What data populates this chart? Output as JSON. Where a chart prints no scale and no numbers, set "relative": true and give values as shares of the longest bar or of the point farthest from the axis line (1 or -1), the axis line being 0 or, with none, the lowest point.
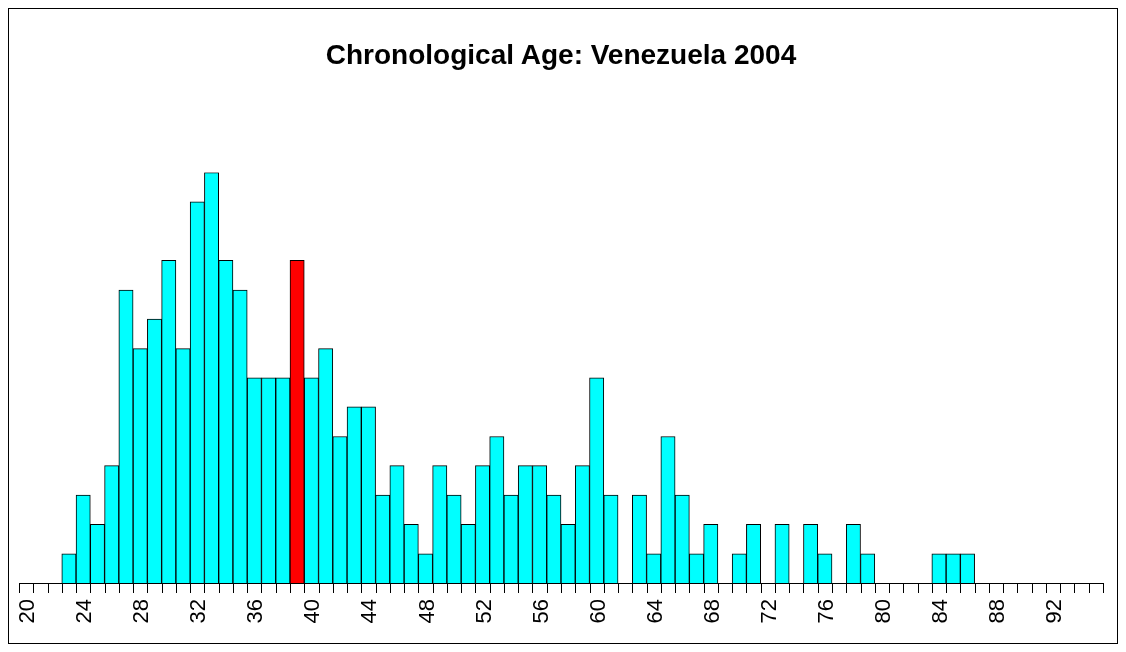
{
  "chart_data": {
    "type": "bar",
    "title": "Chronological Age: Venezuela 2004",
    "relative": true,
    "categories": [
      "20",
      null,
      null,
      null,
      "24",
      null,
      null,
      null,
      "28",
      null,
      null,
      null,
      "32",
      null,
      null,
      null,
      "36",
      null,
      null,
      null,
      "40",
      null,
      null,
      null,
      "44",
      null,
      null,
      null,
      "48",
      null,
      null,
      null,
      "52",
      null,
      null,
      null,
      "56",
      null,
      null,
      null,
      "60",
      null,
      null,
      null,
      "64",
      null,
      null,
      null,
      "68",
      null,
      null,
      null,
      "72",
      null,
      null,
      null,
      "76",
      null,
      null,
      null,
      "80",
      null,
      null,
      null,
      "84",
      null,
      null,
      null,
      "88",
      null,
      null,
      null,
      "92",
      null,
      null,
      null
    ],
    "values": [
      0,
      0,
      0,
      0.071,
      0.214,
      0.143,
      0.286,
      0.714,
      0.571,
      0.643,
      0.786,
      0.571,
      0.929,
      1,
      0.786,
      0.714,
      0.5,
      0.5,
      0.5,
      0.786,
      0.5,
      0.571,
      0.357,
      0.429,
      0.429,
      0.214,
      0.286,
      0.143,
      0.071,
      0.286,
      0.214,
      0.143,
      0.286,
      0.357,
      0.214,
      0.286,
      0.286,
      0.214,
      0.143,
      0.286,
      0.5,
      0.214,
      0,
      0.214,
      0.071,
      0.357,
      0.214,
      0.071,
      0.143,
      0,
      0.071,
      0.143,
      0,
      0.143,
      0,
      0.143,
      0.071,
      0,
      0.143,
      0.071,
      0,
      0,
      0,
      0,
      0.071,
      0.071,
      0.071,
      0,
      0,
      0,
      0,
      0,
      0,
      0,
      0,
      0
    ],
    "colors": [
      "#00ffff",
      "#00ffff",
      "#00ffff",
      "#00ffff",
      "#00ffff",
      "#00ffff",
      "#00ffff",
      "#00ffff",
      "#00ffff",
      "#00ffff",
      "#00ffff",
      "#00ffff",
      "#00ffff",
      "#00ffff",
      "#00ffff",
      "#00ffff",
      "#00ffff",
      "#00ffff",
      "#00ffff",
      "#ff0000",
      "#00ffff",
      "#00ffff",
      "#00ffff",
      "#00ffff",
      "#00ffff",
      "#00ffff",
      "#00ffff",
      "#00ffff",
      "#00ffff",
      "#00ffff",
      "#00ffff",
      "#00ffff",
      "#00ffff",
      "#00ffff",
      "#00ffff",
      "#00ffff",
      "#00ffff",
      "#00ffff",
      "#00ffff",
      "#00ffff",
      "#00ffff",
      "#00ffff",
      "#00ffff",
      "#00ffff",
      "#00ffff",
      "#00ffff",
      "#00ffff",
      "#00ffff",
      "#00ffff",
      "#00ffff",
      "#00ffff",
      "#00ffff",
      "#00ffff",
      "#00ffff",
      "#00ffff",
      "#00ffff",
      "#00ffff",
      "#00ffff",
      "#00ffff",
      "#00ffff",
      "#00ffff",
      "#00ffff",
      "#00ffff",
      "#00ffff",
      "#00ffff",
      "#00ffff",
      "#00ffff",
      "#00ffff",
      "#00ffff",
      "#00ffff",
      "#00ffff",
      "#00ffff",
      "#00ffff",
      "#00ffff",
      "#00ffff",
      "#00ffff"
    ]
  }
}
